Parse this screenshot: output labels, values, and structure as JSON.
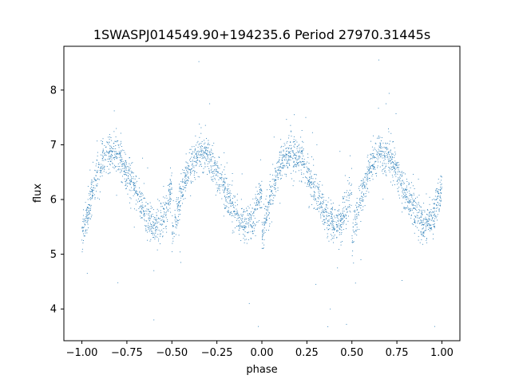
{
  "chart_data": {
    "type": "scatter",
    "title": "1SWASPJ014549.90+194235.6 Period 27970.31445s",
    "xlabel": "phase",
    "ylabel": "flux",
    "xlim": [
      -1.1,
      1.1
    ],
    "ylim": [
      3.42,
      8.8
    ],
    "xticks": [
      -1.0,
      -0.75,
      -0.5,
      -0.25,
      0.0,
      0.25,
      0.5,
      0.75,
      1.0
    ],
    "xtick_labels": [
      "−1.00",
      "−0.75",
      "−0.50",
      "−0.25",
      "0.00",
      "0.25",
      "0.50",
      "0.75",
      "1.00"
    ],
    "yticks": [
      4,
      5,
      6,
      7,
      8
    ],
    "ytick_labels": [
      "4",
      "5",
      "6",
      "7",
      "8"
    ],
    "grid": false,
    "marker_color": "#1f77b4",
    "profile": {
      "phase": [
        0.0,
        0.05,
        0.1,
        0.15,
        0.2,
        0.25,
        0.3,
        0.35,
        0.4,
        0.45,
        0.5
      ],
      "flux": [
        5.35,
        6.05,
        6.6,
        6.85,
        6.8,
        6.5,
        6.15,
        5.75,
        5.5,
        5.65,
        6.2
      ],
      "description_points_phase": [
        -1.0,
        -0.8,
        -0.55,
        -0.3,
        -0.05,
        0.18,
        0.45,
        0.68,
        0.95
      ],
      "description_points_flux": [
        5.9,
        6.85,
        5.45,
        6.75,
        5.35,
        6.85,
        5.45,
        6.75,
        5.35
      ]
    },
    "num_points": 3400,
    "scatter_sigma": 0.17,
    "outliers": [
      {
        "x": -0.97,
        "y": 4.65
      },
      {
        "x": -0.6,
        "y": 3.8
      },
      {
        "x": -0.07,
        "y": 4.1
      },
      {
        "x": -0.02,
        "y": 3.68
      },
      {
        "x": 0.38,
        "y": 4.0
      },
      {
        "x": 0.47,
        "y": 3.72
      },
      {
        "x": 0.96,
        "y": 3.68
      },
      {
        "x": -0.35,
        "y": 8.52
      },
      {
        "x": 0.65,
        "y": 8.55
      },
      {
        "x": -0.82,
        "y": 7.62
      },
      {
        "x": 0.18,
        "y": 7.55
      },
      {
        "x": -0.29,
        "y": 7.75
      },
      {
        "x": 0.69,
        "y": 7.75
      },
      {
        "x": 0.55,
        "y": 4.9
      },
      {
        "x": -0.45,
        "y": 4.85
      },
      {
        "x": -0.8,
        "y": 4.48
      },
      {
        "x": 0.3,
        "y": 4.45
      },
      {
        "x": -0.6,
        "y": 4.7
      },
      {
        "x": 0.42,
        "y": 4.75
      }
    ]
  }
}
